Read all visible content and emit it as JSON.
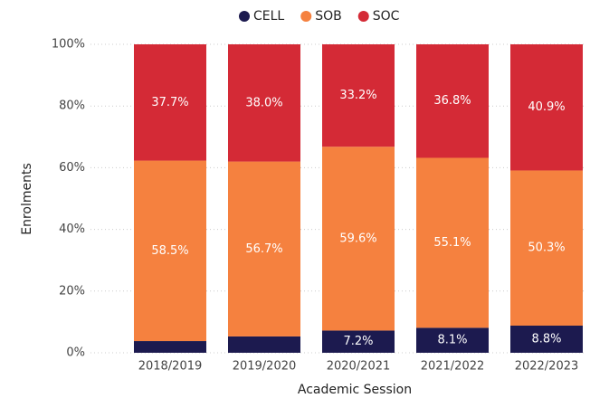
{
  "chart_data": {
    "type": "stacked_bar",
    "categories": [
      "2018/2019",
      "2019/2020",
      "2020/2021",
      "2021/2022",
      "2022/2023"
    ],
    "series": [
      {
        "name": "CELL",
        "color": "#1c1a4f",
        "values": [
          3.8,
          5.3,
          7.2,
          8.1,
          8.8
        ],
        "value_labels": [
          null,
          null,
          "7.2%",
          "8.1%",
          "8.8%"
        ]
      },
      {
        "name": "SOB",
        "color": "#f5813f",
        "values": [
          58.5,
          56.7,
          59.6,
          55.1,
          50.3
        ],
        "value_labels": [
          "58.5%",
          "56.7%",
          "59.6%",
          "55.1%",
          "50.3%"
        ]
      },
      {
        "name": "SOC",
        "color": "#d42a36",
        "values": [
          37.7,
          38.0,
          33.2,
          36.8,
          40.9
        ],
        "value_labels": [
          "37.7%",
          "38.0%",
          "33.2%",
          "36.8%",
          "40.9%"
        ]
      }
    ],
    "ylim": [
      0,
      100
    ],
    "yticks": [
      {
        "value": 0,
        "label": "0%"
      },
      {
        "value": 20,
        "label": "20%"
      },
      {
        "value": 40,
        "label": "40%"
      },
      {
        "value": 60,
        "label": "60%"
      },
      {
        "value": 80,
        "label": "80%"
      },
      {
        "value": 100,
        "label": "100%"
      }
    ],
    "ylabel": "Enrolments",
    "xlabel": "Academic Session",
    "grid": true,
    "legend": "top"
  }
}
